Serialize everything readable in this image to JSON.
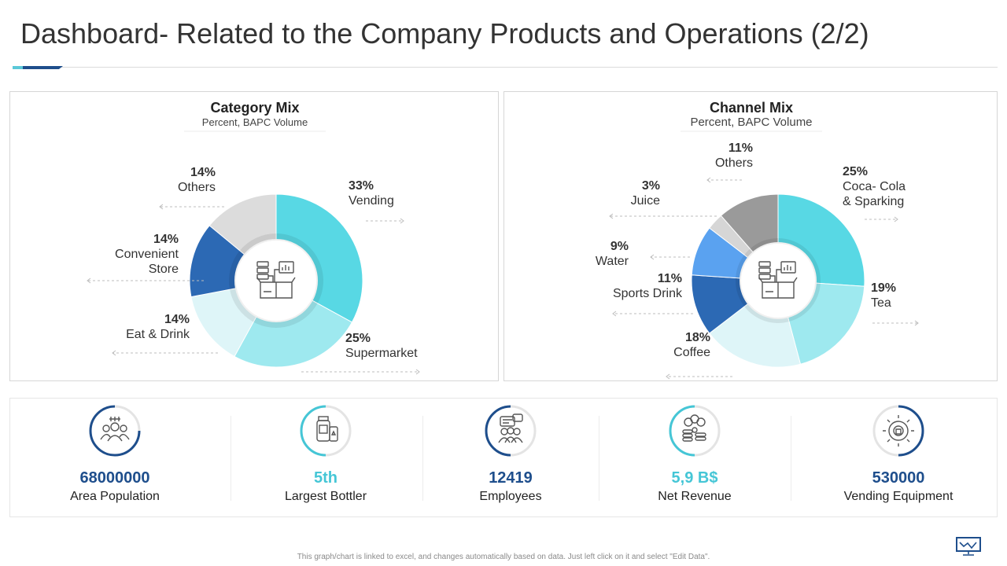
{
  "page": {
    "title": "Dashboard- Related to the Company Products and Operations (2/2)",
    "footnote": "This graph/chart is linked to excel, and changes automatically based on data. Just left click on it and select \"Edit Data\"."
  },
  "chart_data": [
    {
      "type": "pie",
      "title": "Category Mix",
      "subtitle": "Percent, BAPC Volume",
      "center_icon": "product-box-icon",
      "slices": [
        {
          "label": "Vending",
          "value": 33,
          "display": "33%",
          "color": "#58d8e4"
        },
        {
          "label": "Supermarket",
          "value": 25,
          "display": "25%",
          "color": "#9ee9ef"
        },
        {
          "label": "Eat & Drink",
          "value": 14,
          "display": "14%",
          "color": "#def5f8"
        },
        {
          "label": "Convenient Store",
          "value": 14,
          "display": "14%",
          "color": "#2c69b4"
        },
        {
          "label": "Others",
          "value": 14,
          "display": "14%",
          "color": "#dcdcdc"
        }
      ]
    },
    {
      "type": "pie",
      "title": "Channel Mix",
      "subtitle": "Percent, BAPC Volume",
      "center_icon": "product-box-icon",
      "slices": [
        {
          "label": "Coca- Cola & Sparking",
          "value": 25,
          "display": "25%",
          "color": "#58d8e4"
        },
        {
          "label": "Tea",
          "value": 19,
          "display": "19%",
          "color": "#9ee9ef"
        },
        {
          "label": "Coffee",
          "value": 18,
          "display": "18%",
          "color": "#def5f8"
        },
        {
          "label": "Sports Drink",
          "value": 11,
          "display": "11%",
          "color": "#2c69b4"
        },
        {
          "label": "Water",
          "value": 9,
          "display": "9%",
          "color": "#5aa2f0"
        },
        {
          "label": "Juice",
          "value": 3,
          "display": "3%",
          "color": "#d6d6d6"
        },
        {
          "label": "Others",
          "value": 11,
          "display": "11%",
          "color": "#9a9a9a"
        }
      ]
    }
  ],
  "kpis": [
    {
      "value": "68000000",
      "label": "Area Population",
      "icon": "population-icon",
      "color": "#1e4e8c"
    },
    {
      "value": "5th",
      "label": "Largest Bottler",
      "icon": "bottle-icon",
      "color": "#45c6d6"
    },
    {
      "value": "12419",
      "label": "Employees",
      "icon": "employees-icon",
      "color": "#1e4e8c"
    },
    {
      "value": "5,9 B$",
      "label": "Net Revenue",
      "icon": "revenue-coins-icon",
      "color": "#45c6d6"
    },
    {
      "value": "530000",
      "label": "Vending Equipment",
      "icon": "vending-gear-icon",
      "color": "#1e4e8c"
    }
  ]
}
